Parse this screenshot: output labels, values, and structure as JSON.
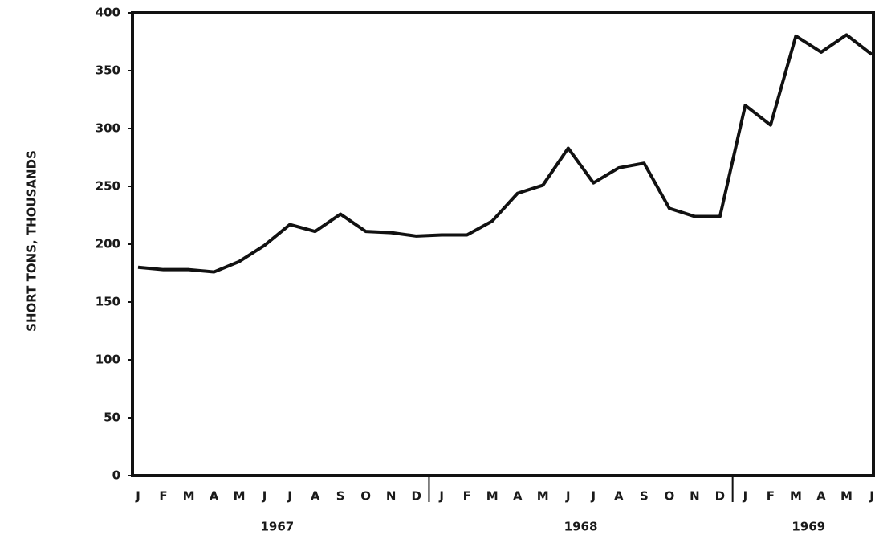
{
  "chart_data": {
    "type": "line",
    "y_label": "SHORT TONS, THOUSANDS",
    "categories": [
      "J",
      "F",
      "M",
      "A",
      "M",
      "J",
      "J",
      "A",
      "S",
      "O",
      "N",
      "D",
      "J",
      "F",
      "M",
      "A",
      "M",
      "J",
      "J",
      "A",
      "S",
      "O",
      "N",
      "D",
      "J",
      "F",
      "M",
      "A",
      "M",
      "J"
    ],
    "years": [
      "1967",
      "1968",
      "1969"
    ],
    "series": [
      {
        "color": "#111111",
        "values": [
          180,
          178,
          178,
          176,
          185,
          199,
          217,
          211,
          226,
          211,
          210,
          207,
          208,
          208,
          220,
          244,
          251,
          283,
          253,
          266,
          270,
          231,
          224,
          224,
          320,
          303,
          380,
          366,
          381,
          364
        ]
      }
    ],
    "ylim": [
      0,
      400
    ],
    "yticks": [
      0,
      50,
      100,
      150,
      200,
      250,
      300,
      350,
      400
    ],
    "grid": false
  }
}
